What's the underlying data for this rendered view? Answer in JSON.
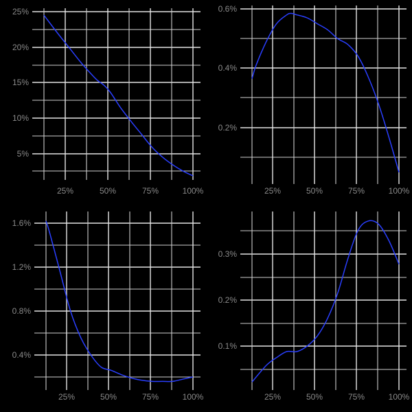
{
  "chart_data": [
    {
      "type": "line",
      "panel": "top-left",
      "title": "",
      "xlabel": "",
      "ylabel": "",
      "x_ticks": [
        "25%",
        "50%",
        "75%",
        "100%"
      ],
      "y_ticks": [
        "5%",
        "10%",
        "15%",
        "20%",
        "25%"
      ],
      "xlim": [
        0.1,
        1.0
      ],
      "ylim": [
        0.015,
        0.25
      ],
      "grid": true,
      "line_color": "#2a3fff",
      "x": [
        0.1,
        0.175,
        0.25,
        0.325,
        0.375,
        0.42,
        0.46,
        0.5,
        0.5625,
        0.625,
        0.6875,
        0.75,
        0.8125,
        0.875,
        0.9375,
        1.0
      ],
      "y": [
        0.245,
        0.222,
        0.2,
        0.178,
        0.165,
        0.154,
        0.147,
        0.137,
        0.115,
        0.096,
        0.078,
        0.06,
        0.046,
        0.035,
        0.026,
        0.019
      ]
    },
    {
      "type": "line",
      "panel": "top-right",
      "title": "",
      "xlabel": "",
      "ylabel": "",
      "x_ticks": [
        "25%",
        "50%",
        "75%",
        "100%"
      ],
      "y_ticks": [
        "0.2%",
        "0.4%",
        "0.6%"
      ],
      "xlim": [
        0.1,
        1.0
      ],
      "ylim": [
        0.0004,
        0.006
      ],
      "grid": true,
      "line_color": "#2a3fff",
      "x": [
        0.1,
        0.125,
        0.1875,
        0.25,
        0.3125,
        0.34,
        0.375,
        0.4375,
        0.5,
        0.5625,
        0.625,
        0.6875,
        0.75,
        0.8125,
        0.875,
        0.9375,
        1.0
      ],
      "y": [
        0.00365,
        0.0041,
        0.0049,
        0.0055,
        0.0058,
        0.00585,
        0.0058,
        0.0057,
        0.0055,
        0.0053,
        0.005,
        0.0048,
        0.0044,
        0.0037,
        0.0028,
        0.0017,
        0.0005
      ]
    },
    {
      "type": "line",
      "panel": "bottom-left",
      "title": "",
      "xlabel": "",
      "ylabel": "",
      "x_ticks": [
        "25%",
        "50%",
        "75%",
        "100%"
      ],
      "y_ticks": [
        "0.4%",
        "0.8%",
        "1.2%",
        "1.6%"
      ],
      "xlim": [
        0.1,
        1.0
      ],
      "ylim": [
        0.0015,
        0.0162
      ],
      "grid": true,
      "line_color": "#2a3fff",
      "x": [
        0.1,
        0.125,
        0.1875,
        0.25,
        0.3125,
        0.375,
        0.4375,
        0.5,
        0.5625,
        0.625,
        0.6875,
        0.75,
        0.8125,
        0.875,
        0.9375,
        1.0
      ],
      "y": [
        0.0162,
        0.015,
        0.0115,
        0.008,
        0.0056,
        0.004,
        0.0029,
        0.0026,
        0.0022,
        0.0019,
        0.0017,
        0.0016,
        0.0016,
        0.0016,
        0.0018,
        0.002
      ]
    },
    {
      "type": "line",
      "panel": "bottom-right",
      "title": "",
      "xlabel": "",
      "ylabel": "",
      "x_ticks": [
        "25%",
        "50%",
        "75%",
        "100%"
      ],
      "y_ticks": [
        "0.1%",
        "0.2%",
        "0.3%"
      ],
      "xlim": [
        0.1,
        1.0
      ],
      "ylim": [
        0.0002,
        0.0037
      ],
      "grid": true,
      "line_color": "#2a3fff",
      "x": [
        0.1,
        0.1875,
        0.25,
        0.3125,
        0.375,
        0.4375,
        0.5,
        0.5625,
        0.625,
        0.6875,
        0.75,
        0.8125,
        0.875,
        0.9375,
        1.0
      ],
      "y": [
        0.00022,
        0.00058,
        0.00075,
        0.00088,
        0.00088,
        0.001,
        0.00122,
        0.0016,
        0.00215,
        0.0029,
        0.00352,
        0.00372,
        0.00365,
        0.0033,
        0.00278
      ]
    }
  ]
}
